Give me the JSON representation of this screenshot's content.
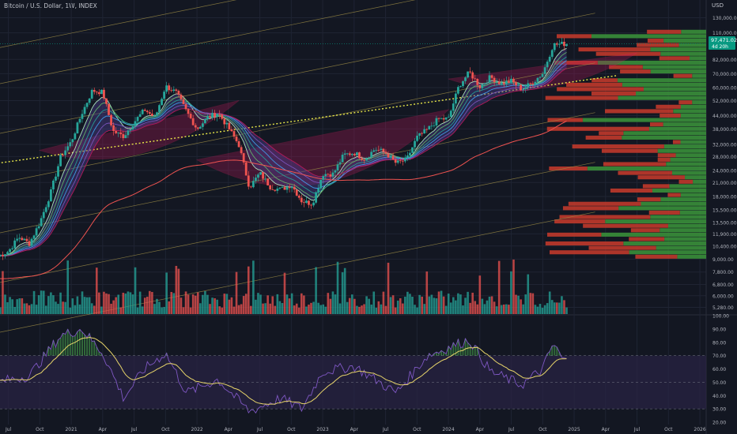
{
  "header": {
    "title": "Bitcoin / U.S. Dollar, 1W, INDEX",
    "currency": "USD"
  },
  "price_badge": {
    "price": "97,471.02",
    "countdown": "4d 20h",
    "color": "#089981"
  },
  "colors": {
    "background": "#131722",
    "grid": "#1f2433",
    "up": "#26a69a",
    "down": "#ef5350",
    "channel": "#9a8a45",
    "trendline": "#e8e84a",
    "ma_long": "#ef5350",
    "bowl_fill": "#c2185b",
    "rsi_line": "#7e57c2",
    "rsi_ma": "#e8d56a",
    "rsi_band": "#2a2445",
    "vp_up": "#3a8f3a",
    "vp_down": "#c0392b"
  },
  "chart_data": [
    {
      "type": "candlestick",
      "name": "price",
      "x_ticks": [
        "Jul",
        "Oct",
        "2021",
        "Apr",
        "Jul",
        "Oct",
        "2022",
        "Apr",
        "Jul",
        "Oct",
        "2023",
        "Apr",
        "Jul",
        "Oct",
        "2024",
        "Apr",
        "Jul",
        "Oct",
        "2025",
        "Apr",
        "Jul",
        "Oct",
        "2026"
      ],
      "x_range": [
        "2020-06",
        "2026-01"
      ],
      "y_scale": "log",
      "y_ticks": [
        "130,000.00",
        "110,000.00",
        "82,000.00",
        "70,000.00",
        "60,000.00",
        "52,000.00",
        "44,000.00",
        "38,000.00",
        "32,000.00",
        "28,000.00",
        "24,000.00",
        "21,000.00",
        "18,000.00",
        "15,500.00",
        "13,500.00",
        "11,900.00",
        "10,400.00",
        "9,000.00",
        "7,800.00",
        "6,800.00",
        "6,000.00",
        "5,280.00"
      ],
      "y_range": [
        4900,
        140000
      ],
      "points": [
        [
          "2020-06",
          9300
        ],
        [
          "2020-07",
          9800
        ],
        [
          "2020-08",
          11500
        ],
        [
          "2020-09",
          10700
        ],
        [
          "2020-10",
          13500
        ],
        [
          "2020-11",
          18500
        ],
        [
          "2020-12",
          28000
        ],
        [
          "2021-01",
          33000
        ],
        [
          "2021-02",
          45000
        ],
        [
          "2021-03",
          58000
        ],
        [
          "2021-04",
          57000
        ],
        [
          "2021-05",
          37000
        ],
        [
          "2021-06",
          35000
        ],
        [
          "2021-07",
          41000
        ],
        [
          "2021-08",
          47000
        ],
        [
          "2021-09",
          43000
        ],
        [
          "2021-10",
          61000
        ],
        [
          "2021-11",
          57000
        ],
        [
          "2021-12",
          46000
        ],
        [
          "2022-01",
          38000
        ],
        [
          "2022-02",
          43000
        ],
        [
          "2022-03",
          45500
        ],
        [
          "2022-04",
          38500
        ],
        [
          "2022-05",
          31800
        ],
        [
          "2022-06",
          19900
        ],
        [
          "2022-07",
          23300
        ],
        [
          "2022-08",
          20000
        ],
        [
          "2022-09",
          19400
        ],
        [
          "2022-10",
          20500
        ],
        [
          "2022-11",
          17100
        ],
        [
          "2022-12",
          16600
        ],
        [
          "2023-01",
          23100
        ],
        [
          "2023-02",
          23100
        ],
        [
          "2023-03",
          28500
        ],
        [
          "2023-04",
          29200
        ],
        [
          "2023-05",
          27200
        ],
        [
          "2023-06",
          30500
        ],
        [
          "2023-07",
          29200
        ],
        [
          "2023-08",
          26000
        ],
        [
          "2023-09",
          27000
        ],
        [
          "2023-10",
          34600
        ],
        [
          "2023-11",
          37700
        ],
        [
          "2023-12",
          42300
        ],
        [
          "2024-01",
          42600
        ],
        [
          "2024-02",
          61200
        ],
        [
          "2024-03",
          71300
        ],
        [
          "2024-04",
          60700
        ],
        [
          "2024-05",
          67500
        ],
        [
          "2024-06",
          62700
        ],
        [
          "2024-07",
          64600
        ],
        [
          "2024-08",
          59000
        ],
        [
          "2024-09",
          63300
        ],
        [
          "2024-10",
          70300
        ],
        [
          "2024-11",
          96400
        ],
        [
          "2024-12",
          97471
        ]
      ],
      "last_price": 97471.02
    },
    {
      "type": "bar",
      "name": "volume",
      "note_pane": "volume histogram under price"
    },
    {
      "type": "line",
      "name": "RSI",
      "y_ticks": [
        "100.00",
        "90.00",
        "80.00",
        "70.00",
        "60.00",
        "50.00",
        "40.00",
        "30.00",
        "20.00"
      ],
      "y_range": [
        20,
        100
      ],
      "band": [
        30,
        70
      ],
      "points": [
        [
          "2020-06",
          50
        ],
        [
          "2020-09",
          55
        ],
        [
          "2020-12",
          85
        ],
        [
          "2021-02",
          90
        ],
        [
          "2021-04",
          72
        ],
        [
          "2021-06",
          38
        ],
        [
          "2021-08",
          60
        ],
        [
          "2021-10",
          72
        ],
        [
          "2021-12",
          42
        ],
        [
          "2022-03",
          52
        ],
        [
          "2022-06",
          28
        ],
        [
          "2022-09",
          38
        ],
        [
          "2022-11",
          30
        ],
        [
          "2023-01",
          58
        ],
        [
          "2023-04",
          62
        ],
        [
          "2023-08",
          42
        ],
        [
          "2023-11",
          70
        ],
        [
          "2024-03",
          82
        ],
        [
          "2024-05",
          58
        ],
        [
          "2024-08",
          48
        ],
        [
          "2024-10",
          60
        ],
        [
          "2024-11",
          79
        ],
        [
          "2024-12",
          66
        ]
      ]
    }
  ]
}
